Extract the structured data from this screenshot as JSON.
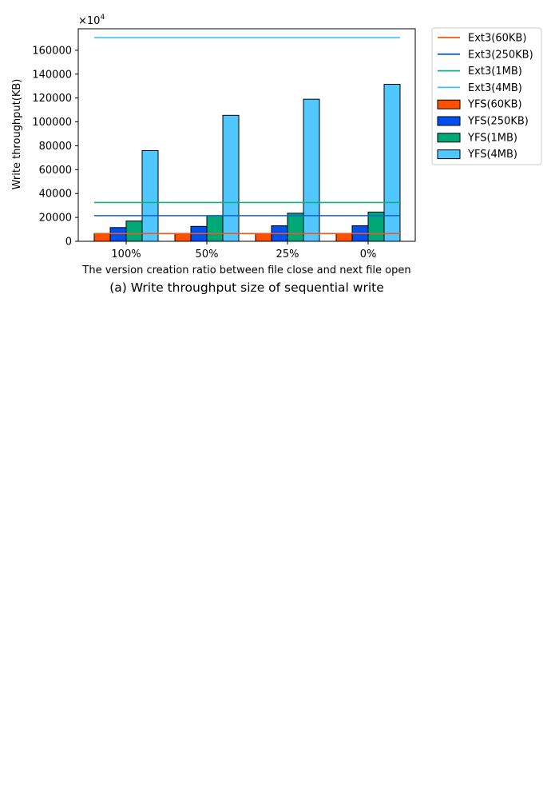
{
  "chart_data": {
    "type": "bar",
    "title": "",
    "caption": "(a) Write throughput size of sequential write",
    "xlabel": "The version creation ratio between file close and next file open",
    "ylabel": "Write throughput(KB)",
    "y_multiplier_label": "×10",
    "y_multiplier_exponent": "4",
    "ylim": [
      0,
      178000
    ],
    "yticks": [
      0,
      20000,
      40000,
      60000,
      80000,
      100000,
      120000,
      140000,
      160000
    ],
    "categories": [
      "100%",
      "50%",
      "25%",
      "0%"
    ],
    "series": [
      {
        "name": "YFS(60KB)",
        "color": "#FF5000",
        "values": [
          6500,
          6500,
          6500,
          6500
        ]
      },
      {
        "name": "YFS(250KB)",
        "color": "#0050F0",
        "values": [
          11500,
          12500,
          13000,
          13000
        ]
      },
      {
        "name": "YFS(1MB)",
        "color": "#00A878",
        "values": [
          17000,
          21500,
          23500,
          24500
        ]
      },
      {
        "name": "YFS(4MB)",
        "color": "#50C8FF",
        "values": [
          76000,
          105500,
          119000,
          131500
        ]
      }
    ],
    "reference_lines": [
      {
        "name": "Ext3(60KB)",
        "color": "#F05A10",
        "value": 6500
      },
      {
        "name": "Ext3(250KB)",
        "color": "#1060E0",
        "value": 21500
      },
      {
        "name": "Ext3(1MB)",
        "color": "#10B080",
        "value": 32500
      },
      {
        "name": "Ext3(4MB)",
        "color": "#40C0F8",
        "value": 170500
      }
    ],
    "legend_order": [
      "Ext3(60KB)",
      "Ext3(250KB)",
      "Ext3(1MB)",
      "Ext3(4MB)",
      "YFS(60KB)",
      "YFS(250KB)",
      "YFS(1MB)",
      "YFS(4MB)"
    ],
    "legend_position": "outside-right-top",
    "grid": false
  }
}
